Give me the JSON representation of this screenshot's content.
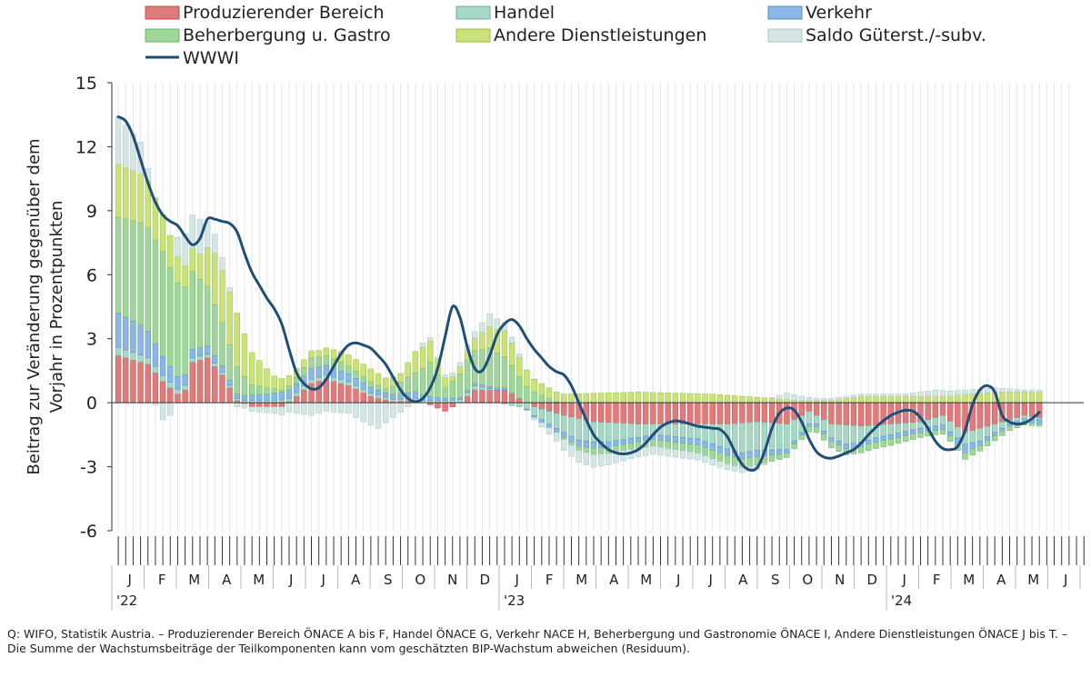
{
  "chart_data": {
    "type": "bar",
    "stacked": true,
    "ylabel_lines": [
      "Beitrag zur Veränderung gegenüber dem",
      "Vorjahr in Prozentpunkten"
    ],
    "ylim": [
      -6,
      15
    ],
    "yticks": [
      15,
      12,
      9,
      6,
      3,
      0,
      -3,
      -6
    ],
    "legend_position": "top",
    "grid": false,
    "series": [
      {
        "name": "Produzierender Bereich",
        "color": "#e07b7b",
        "border": "#c24f4f"
      },
      {
        "name": "Handel",
        "color": "#a7d7c5",
        "border": "#6fb39b"
      },
      {
        "name": "Verkehr",
        "color": "#8ab8e6",
        "border": "#4f8fcf"
      },
      {
        "name": "Beherbergung u. Gastro",
        "color": "#9fd69a",
        "border": "#6cb466"
      },
      {
        "name": "Andere Dienstleistungen",
        "color": "#c9e37a",
        "border": "#9cbf3c"
      },
      {
        "name": "Saldo Güterst./-subv.",
        "color": "#d3e6e4",
        "border": "#a9c8c5"
      }
    ],
    "line_series": {
      "name": "WWWI",
      "color": "#1f4e79"
    },
    "month_labels": [
      "J",
      "F",
      "M",
      "A",
      "M",
      "J",
      "J",
      "A",
      "S",
      "O",
      "N",
      "D",
      "J",
      "F",
      "M",
      "A",
      "M",
      "J",
      "J",
      "A",
      "S",
      "O",
      "N",
      "D",
      "J",
      "F",
      "M",
      "A",
      "M",
      "J"
    ],
    "year_labels": [
      {
        "month_index": 0,
        "label": "'22"
      },
      {
        "month_index": 12,
        "label": "'23"
      },
      {
        "month_index": 24,
        "label": "'24"
      }
    ],
    "weeks_per_month": 4.345,
    "weekly": {
      "produzierender": [
        [
          0,
          2.2
        ],
        [
          4,
          1.8
        ],
        [
          6,
          1.0
        ],
        [
          8,
          0.4
        ],
        [
          9,
          0.6
        ],
        [
          10,
          1.9
        ],
        [
          12,
          2.1
        ],
        [
          14,
          1.3
        ],
        [
          16,
          0.1
        ],
        [
          18,
          -0.2
        ],
        [
          22,
          -0.2
        ],
        [
          24,
          0.3
        ],
        [
          26,
          0.9
        ],
        [
          28,
          1.1
        ],
        [
          31,
          0.8
        ],
        [
          34,
          0.3
        ],
        [
          37,
          0.05
        ],
        [
          40,
          0.1
        ],
        [
          42,
          -0.1
        ],
        [
          44,
          -0.4
        ],
        [
          46,
          0.0
        ],
        [
          48,
          0.6
        ],
        [
          52,
          0.6
        ],
        [
          56,
          -0.2
        ],
        [
          60,
          -0.6
        ],
        [
          64,
          -0.9
        ],
        [
          70,
          -1.0
        ],
        [
          76,
          -1.0
        ],
        [
          82,
          -1.0
        ],
        [
          86,
          -0.9
        ],
        [
          90,
          -1.0
        ],
        [
          93,
          -0.4
        ],
        [
          96,
          -1.0
        ],
        [
          100,
          -1.1
        ],
        [
          104,
          -1.0
        ],
        [
          108,
          -0.9
        ],
        [
          111,
          -0.6
        ],
        [
          114,
          -1.4
        ],
        [
          117,
          -1.1
        ],
        [
          122,
          -0.6
        ],
        [
          128,
          -0.9
        ]
      ],
      "handel": [
        [
          0,
          0.4
        ],
        [
          10,
          0.2
        ],
        [
          16,
          0.1
        ],
        [
          20,
          0.1
        ],
        [
          26,
          0.2
        ],
        [
          30,
          0.2
        ],
        [
          38,
          0.1
        ],
        [
          44,
          0.1
        ],
        [
          48,
          0.2
        ],
        [
          54,
          -0.2
        ],
        [
          58,
          -0.6
        ],
        [
          62,
          -1.0
        ],
        [
          66,
          -0.9
        ],
        [
          72,
          -0.5
        ],
        [
          78,
          -0.7
        ],
        [
          84,
          -1.4
        ],
        [
          90,
          -1.2
        ],
        [
          94,
          -0.4
        ],
        [
          98,
          -0.9
        ],
        [
          102,
          -0.6
        ],
        [
          108,
          -0.3
        ],
        [
          112,
          -0.5
        ],
        [
          116,
          -0.6
        ],
        [
          120,
          -0.2
        ],
        [
          124,
          -0.1
        ],
        [
          128,
          -0.1
        ]
      ],
      "verkehr": [
        [
          0,
          1.6
        ],
        [
          3,
          1.4
        ],
        [
          6,
          0.9
        ],
        [
          8,
          0.6
        ],
        [
          10,
          0.4
        ],
        [
          12,
          0.4
        ],
        [
          16,
          0.2
        ],
        [
          20,
          0.3
        ],
        [
          26,
          0.5
        ],
        [
          30,
          0.4
        ],
        [
          36,
          0.2
        ],
        [
          40,
          0.3
        ],
        [
          44,
          0.1
        ],
        [
          48,
          0.1
        ],
        [
          52,
          0.1
        ],
        [
          56,
          -0.1
        ],
        [
          62,
          -0.3
        ],
        [
          70,
          -0.2
        ],
        [
          80,
          -0.3
        ],
        [
          86,
          -0.3
        ],
        [
          92,
          -0.1
        ],
        [
          98,
          -0.2
        ],
        [
          104,
          -0.2
        ],
        [
          108,
          -0.2
        ],
        [
          112,
          -0.2
        ],
        [
          114,
          -0.4
        ],
        [
          116,
          -0.2
        ],
        [
          120,
          -0.1
        ],
        [
          124,
          -0.2
        ],
        [
          128,
          -0.1
        ]
      ],
      "beherbergung": [
        [
          0,
          4.5
        ],
        [
          3,
          4.8
        ],
        [
          6,
          4.9
        ],
        [
          9,
          4.1
        ],
        [
          11,
          3.2
        ],
        [
          13,
          2.4
        ],
        [
          16,
          1.3
        ],
        [
          18,
          0.5
        ],
        [
          20,
          0.3
        ],
        [
          22,
          0.1
        ],
        [
          26,
          0.5
        ],
        [
          30,
          0.4
        ],
        [
          36,
          0.2
        ],
        [
          40,
          0.9
        ],
        [
          42,
          1.6
        ],
        [
          44,
          0.5
        ],
        [
          47,
          1.4
        ],
        [
          50,
          1.8
        ],
        [
          53,
          1.3
        ],
        [
          56,
          0.5
        ],
        [
          60,
          -0.1
        ],
        [
          64,
          -0.3
        ],
        [
          70,
          -0.3
        ],
        [
          80,
          -0.4
        ],
        [
          86,
          -0.4
        ],
        [
          90,
          -0.2
        ],
        [
          96,
          -0.3
        ],
        [
          104,
          -0.3
        ],
        [
          110,
          -0.2
        ],
        [
          114,
          -0.3
        ],
        [
          120,
          -0.2
        ],
        [
          124,
          -0.1
        ],
        [
          128,
          -0.1
        ]
      ],
      "andere": [
        [
          0,
          2.5
        ],
        [
          4,
          2.2
        ],
        [
          7,
          1.5
        ],
        [
          9,
          1.0
        ],
        [
          11,
          1.2
        ],
        [
          13,
          2.4
        ],
        [
          16,
          2.5
        ],
        [
          18,
          1.5
        ],
        [
          21,
          0.6
        ],
        [
          24,
          0.4
        ],
        [
          27,
          0.3
        ],
        [
          30,
          0.5
        ],
        [
          34,
          0.6
        ],
        [
          38,
          0.4
        ],
        [
          40,
          1.0
        ],
        [
          42,
          1.0
        ],
        [
          45,
          0.2
        ],
        [
          48,
          0.6
        ],
        [
          50,
          1.0
        ],
        [
          52,
          1.2
        ],
        [
          56,
          0.6
        ],
        [
          60,
          0.4
        ],
        [
          70,
          0.5
        ],
        [
          80,
          0.4
        ],
        [
          88,
          0.2
        ],
        [
          92,
          0.1
        ],
        [
          96,
          0.1
        ],
        [
          100,
          0.3
        ],
        [
          104,
          0.3
        ],
        [
          108,
          0.3
        ],
        [
          112,
          0.3
        ],
        [
          114,
          0.4
        ],
        [
          118,
          0.5
        ],
        [
          122,
          0.5
        ],
        [
          128,
          0.5
        ]
      ],
      "saldo": [
        [
          0,
          2.2
        ],
        [
          3,
          1.5
        ],
        [
          4,
          0.6
        ],
        [
          6,
          -0.8
        ],
        [
          7,
          -0.6
        ],
        [
          8,
          0.9
        ],
        [
          9,
          1.5
        ],
        [
          11,
          1.6
        ],
        [
          12,
          1.2
        ],
        [
          14,
          0.6
        ],
        [
          16,
          -0.2
        ],
        [
          18,
          -0.2
        ],
        [
          21,
          -0.3
        ],
        [
          24,
          -0.5
        ],
        [
          26,
          -0.6
        ],
        [
          28,
          -0.4
        ],
        [
          31,
          -0.5
        ],
        [
          33,
          -0.9
        ],
        [
          35,
          -1.2
        ],
        [
          37,
          -0.7
        ],
        [
          39,
          -0.2
        ],
        [
          41,
          0.2
        ],
        [
          43,
          0.1
        ],
        [
          46,
          0.2
        ],
        [
          48,
          0.3
        ],
        [
          50,
          0.6
        ],
        [
          52,
          0.4
        ],
        [
          56,
          -0.1
        ],
        [
          60,
          -0.5
        ],
        [
          64,
          -0.6
        ],
        [
          70,
          -0.4
        ],
        [
          80,
          -0.3
        ],
        [
          86,
          -0.2
        ],
        [
          90,
          0.3
        ],
        [
          94,
          0.1
        ],
        [
          98,
          0.1
        ],
        [
          102,
          0.1
        ],
        [
          106,
          0.1
        ],
        [
          110,
          0.3
        ],
        [
          114,
          0.2
        ],
        [
          118,
          0.2
        ],
        [
          122,
          0.1
        ],
        [
          128,
          0.1
        ]
      ],
      "wwwi": [
        [
          0,
          13.4
        ],
        [
          1,
          13.2
        ],
        [
          2,
          12.5
        ],
        [
          3,
          11.4
        ],
        [
          4,
          10.3
        ],
        [
          5,
          9.4
        ],
        [
          6,
          8.8
        ],
        [
          7,
          8.5
        ],
        [
          8,
          8.3
        ],
        [
          9,
          7.8
        ],
        [
          10,
          7.4
        ],
        [
          11,
          7.7
        ],
        [
          12,
          8.6
        ],
        [
          13,
          8.6
        ],
        [
          14,
          8.5
        ],
        [
          15,
          8.4
        ],
        [
          16,
          8.0
        ],
        [
          17,
          7.0
        ],
        [
          18,
          6.1
        ],
        [
          19,
          5.5
        ],
        [
          20,
          4.9
        ],
        [
          21,
          4.4
        ],
        [
          22,
          3.7
        ],
        [
          23,
          2.5
        ],
        [
          24,
          1.4
        ],
        [
          25,
          0.9
        ],
        [
          26,
          0.65
        ],
        [
          27,
          0.7
        ],
        [
          28,
          1.1
        ],
        [
          29,
          1.7
        ],
        [
          30,
          2.3
        ],
        [
          31,
          2.7
        ],
        [
          32,
          2.8
        ],
        [
          33,
          2.7
        ],
        [
          34,
          2.55
        ],
        [
          35,
          2.2
        ],
        [
          36,
          1.8
        ],
        [
          37,
          1.2
        ],
        [
          38,
          0.6
        ],
        [
          39,
          0.2
        ],
        [
          40,
          0.05
        ],
        [
          41,
          0.2
        ],
        [
          42,
          0.7
        ],
        [
          43,
          1.6
        ],
        [
          44,
          3.1
        ],
        [
          45,
          4.5
        ],
        [
          46,
          4.0
        ],
        [
          47,
          2.6
        ],
        [
          48,
          1.6
        ],
        [
          49,
          1.5
        ],
        [
          50,
          2.2
        ],
        [
          51,
          3.2
        ],
        [
          52,
          3.7
        ],
        [
          53,
          3.9
        ],
        [
          54,
          3.6
        ],
        [
          55,
          3.0
        ],
        [
          56,
          2.5
        ],
        [
          57,
          2.1
        ],
        [
          58,
          1.7
        ],
        [
          59,
          1.45
        ],
        [
          60,
          1.3
        ],
        [
          61,
          0.8
        ],
        [
          62,
          0.0
        ],
        [
          63,
          -0.8
        ],
        [
          64,
          -1.5
        ],
        [
          65,
          -1.9
        ],
        [
          66,
          -2.2
        ],
        [
          67,
          -2.35
        ],
        [
          68,
          -2.4
        ],
        [
          69,
          -2.35
        ],
        [
          70,
          -2.2
        ],
        [
          71,
          -1.9
        ],
        [
          72,
          -1.5
        ],
        [
          73,
          -1.15
        ],
        [
          74,
          -0.95
        ],
        [
          75,
          -0.85
        ],
        [
          76,
          -0.9
        ],
        [
          77,
          -1.0
        ],
        [
          78,
          -1.1
        ],
        [
          79,
          -1.15
        ],
        [
          80,
          -1.2
        ],
        [
          81,
          -1.25
        ],
        [
          82,
          -1.6
        ],
        [
          83,
          -2.3
        ],
        [
          84,
          -2.9
        ],
        [
          85,
          -3.15
        ],
        [
          86,
          -3.05
        ],
        [
          87,
          -2.3
        ],
        [
          88,
          -1.2
        ],
        [
          89,
          -0.5
        ],
        [
          90,
          -0.25
        ],
        [
          91,
          -0.35
        ],
        [
          92,
          -0.9
        ],
        [
          93,
          -1.7
        ],
        [
          94,
          -2.3
        ],
        [
          95,
          -2.55
        ],
        [
          96,
          -2.6
        ],
        [
          97,
          -2.5
        ],
        [
          98,
          -2.35
        ],
        [
          99,
          -2.2
        ],
        [
          100,
          -1.9
        ],
        [
          101,
          -1.5
        ],
        [
          102,
          -1.15
        ],
        [
          103,
          -0.85
        ],
        [
          104,
          -0.6
        ],
        [
          105,
          -0.45
        ],
        [
          106,
          -0.35
        ],
        [
          107,
          -0.4
        ],
        [
          108,
          -0.7
        ],
        [
          109,
          -1.2
        ],
        [
          110,
          -1.8
        ],
        [
          111,
          -2.15
        ],
        [
          112,
          -2.2
        ],
        [
          113,
          -2.05
        ],
        [
          114,
          -1.3
        ],
        [
          115,
          -0.1
        ],
        [
          116,
          0.6
        ],
        [
          117,
          0.8
        ],
        [
          118,
          0.5
        ],
        [
          119,
          -0.6
        ],
        [
          120,
          -0.9
        ],
        [
          121,
          -1.0
        ],
        [
          122,
          -0.95
        ],
        [
          123,
          -0.75
        ],
        [
          124,
          -0.45
        ]
      ]
    },
    "bar_weeks": 125
  },
  "source_note": "Q: WIFO, Statistik Austria. – Produzierender Bereich ÖNACE A bis F, Handel ÖNACE G, Verkehr NACE H, Beherbergung und Gastronomie ÖNACE I, Andere Dienstleistungen ÖNACE  J bis T. – Die Summe der Wachstumsbeiträge der Teilkomponenten kann vom geschätzten BIP-Wachstum abweichen (Residuum)."
}
